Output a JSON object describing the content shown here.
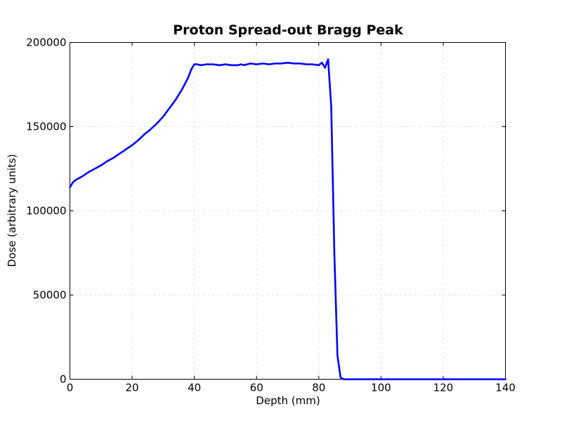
{
  "chart_data": {
    "type": "line",
    "title": "Proton Spread-out Bragg Peak",
    "xlabel": "Depth (mm)",
    "ylabel": "Dose (arbitrary units)",
    "xlim": [
      0,
      140
    ],
    "ylim": [
      0,
      200000
    ],
    "xticks": [
      0,
      20,
      40,
      60,
      80,
      100,
      120,
      140
    ],
    "yticks": [
      0,
      50000,
      100000,
      150000,
      200000
    ],
    "grid": true,
    "series": [
      {
        "color": "#0000ff",
        "x": [
          0,
          1,
          2,
          4,
          6,
          8,
          10,
          12,
          14,
          16,
          18,
          20,
          22,
          24,
          26,
          28,
          30,
          32,
          34,
          36,
          38,
          39,
          40,
          41,
          42,
          44,
          46,
          48,
          50,
          52,
          54,
          55,
          56,
          58,
          60,
          62,
          64,
          66,
          68,
          70,
          72,
          74,
          76,
          78,
          80,
          81,
          82,
          83,
          84,
          85,
          86,
          87,
          88,
          90,
          100,
          110,
          120,
          130,
          140
        ],
        "y": [
          114000,
          117000,
          118500,
          120500,
          123000,
          125000,
          127000,
          129500,
          131500,
          134000,
          136500,
          139000,
          142000,
          145500,
          148500,
          152000,
          156000,
          161000,
          166000,
          172000,
          179000,
          184000,
          187000,
          187000,
          186500,
          187000,
          187000,
          186500,
          187000,
          186500,
          186500,
          187000,
          186500,
          187500,
          187000,
          187500,
          187000,
          187500,
          187500,
          188000,
          187500,
          187500,
          187000,
          187000,
          186500,
          188000,
          185000,
          190000,
          162000,
          75000,
          14000,
          1000,
          0,
          0,
          0,
          0,
          0,
          0,
          0
        ]
      }
    ]
  }
}
